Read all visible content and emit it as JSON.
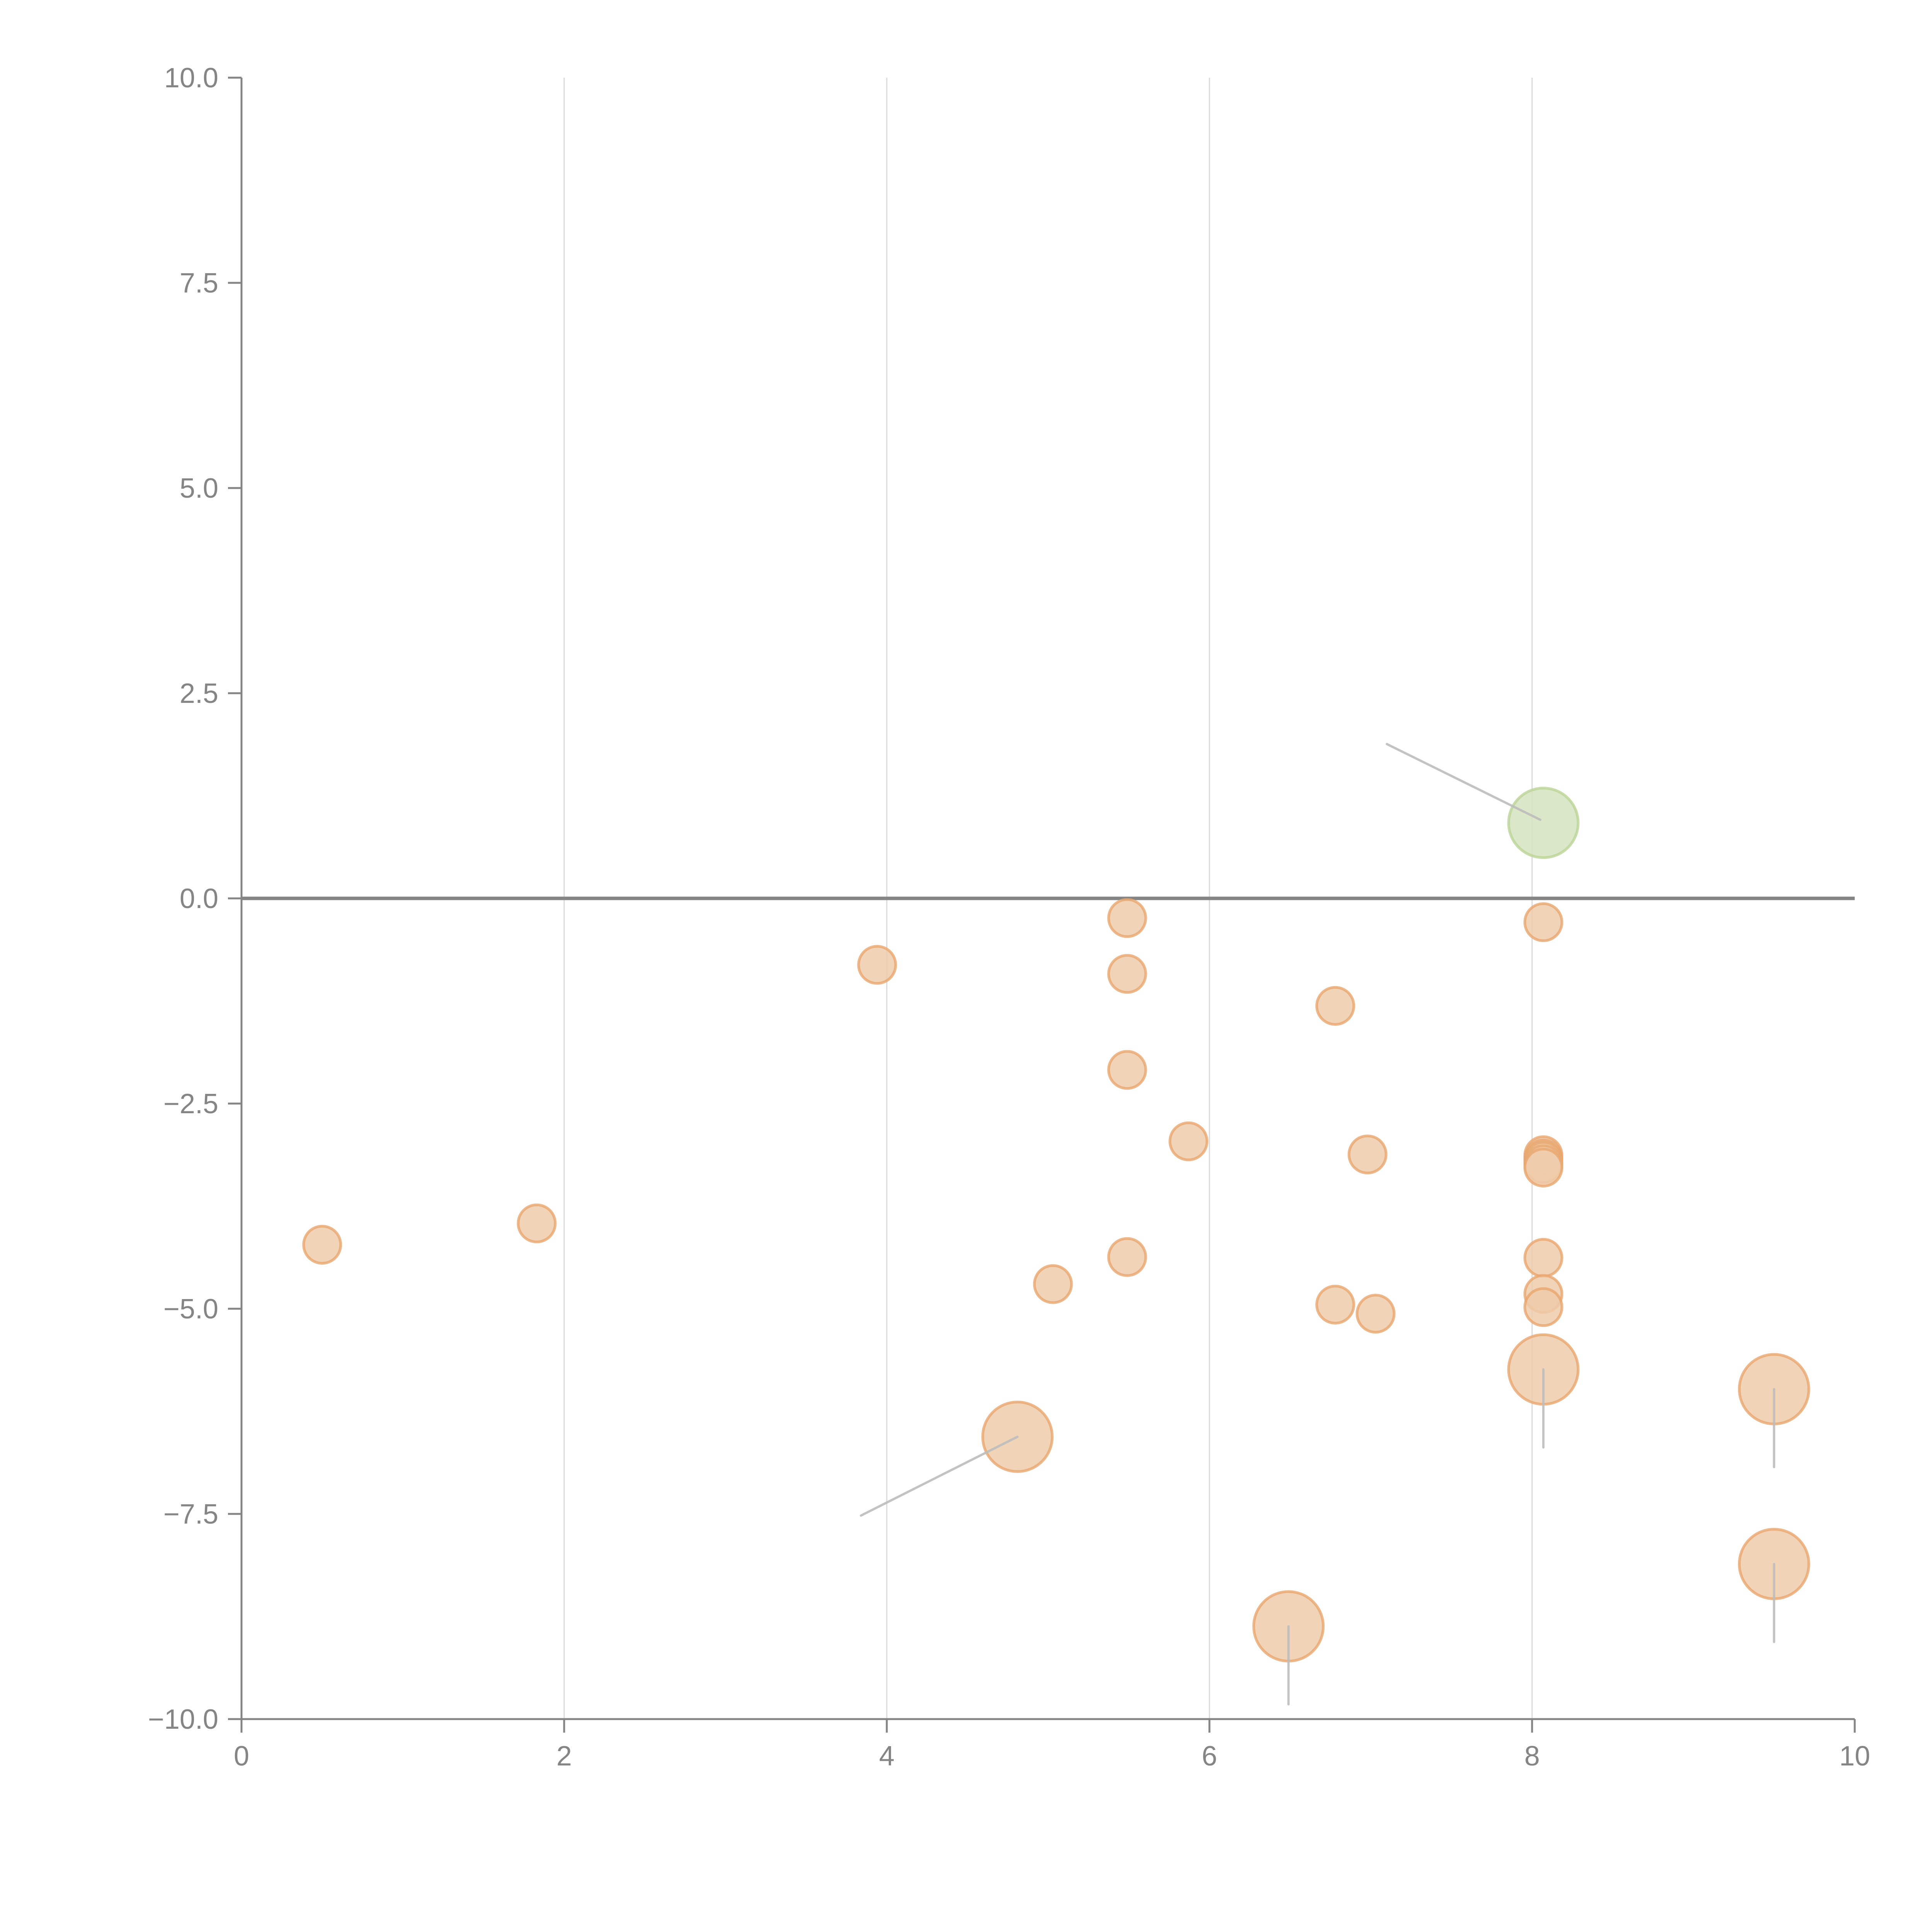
{
  "chart_data": {
    "type": "scatter",
    "title": "",
    "xlabel": "",
    "ylabel": "",
    "xlim": [
      0,
      10
    ],
    "ylim": [
      -10,
      10
    ],
    "x_ticks": [
      0,
      2,
      4,
      6,
      8,
      10
    ],
    "x_tick_labels": [
      "0",
      "2",
      "4",
      "6",
      "8",
      "10"
    ],
    "y_ticks": [
      10,
      7.5,
      5,
      2.5,
      0,
      -2.5,
      -5,
      -7.5,
      -10
    ],
    "y_tick_labels": [
      "10.0",
      "7.5",
      "5.0",
      "2.5",
      "0.0",
      "−2.5",
      "−5.0",
      "−7.5",
      "−10.0"
    ],
    "grid": "vertical",
    "zero_line": true,
    "legend": "none",
    "colors": {
      "default_fill": "#efcbaa",
      "default_stroke": "#e8a66e",
      "highlight_fill": "#d5e3bf",
      "highlight_stroke": "#bcd597",
      "leader": "#bdbdbd",
      "axis": "#858585",
      "grid": "#d9d9d9"
    },
    "series": [
      {
        "name": "points",
        "points": [
          {
            "x": 0.5,
            "y": -4.22,
            "size": "small",
            "highlight": false
          },
          {
            "x": 1.83,
            "y": -3.96,
            "size": "small",
            "highlight": false
          },
          {
            "x": 3.94,
            "y": -0.81,
            "size": "small",
            "highlight": false
          },
          {
            "x": 5.49,
            "y": -0.24,
            "size": "small",
            "highlight": false
          },
          {
            "x": 5.49,
            "y": -0.92,
            "size": "small",
            "highlight": false
          },
          {
            "x": 5.49,
            "y": -2.09,
            "size": "small",
            "highlight": false
          },
          {
            "x": 5.49,
            "y": -4.37,
            "size": "small",
            "highlight": false
          },
          {
            "x": 5.03,
            "y": -4.7,
            "size": "small",
            "highlight": false
          },
          {
            "x": 5.87,
            "y": -2.96,
            "size": "small",
            "highlight": false
          },
          {
            "x": 6.78,
            "y": -1.31,
            "size": "small",
            "highlight": false
          },
          {
            "x": 6.98,
            "y": -3.12,
            "size": "small",
            "highlight": false
          },
          {
            "x": 6.78,
            "y": -4.95,
            "size": "small",
            "highlight": false
          },
          {
            "x": 7.03,
            "y": -5.06,
            "size": "small",
            "highlight": false
          },
          {
            "x": 8.07,
            "y": -0.29,
            "size": "small",
            "highlight": false
          },
          {
            "x": 8.07,
            "y": -3.13,
            "size": "small",
            "highlight": false
          },
          {
            "x": 8.07,
            "y": -3.17,
            "size": "small",
            "highlight": false
          },
          {
            "x": 8.07,
            "y": -3.2,
            "size": "small",
            "highlight": false
          },
          {
            "x": 8.07,
            "y": -3.24,
            "size": "small",
            "highlight": false
          },
          {
            "x": 8.07,
            "y": -3.28,
            "size": "small",
            "highlight": false
          },
          {
            "x": 8.07,
            "y": -4.38,
            "size": "small",
            "highlight": false
          },
          {
            "x": 8.07,
            "y": -4.82,
            "size": "small",
            "highlight": false
          },
          {
            "x": 8.07,
            "y": -4.98,
            "size": "small",
            "highlight": false
          },
          {
            "x": 4.81,
            "y": -6.56,
            "size": "large",
            "highlight": false,
            "leader": {
              "to_x": 3.84,
              "to_y": -7.52
            }
          },
          {
            "x": 6.49,
            "y": -8.87,
            "size": "large",
            "highlight": false,
            "leader": {
              "to_x": 6.49,
              "to_y": -9.82
            }
          },
          {
            "x": 8.07,
            "y": -5.74,
            "size": "large",
            "highlight": false,
            "leader": {
              "to_x": 8.07,
              "to_y": -6.69
            }
          },
          {
            "x": 9.5,
            "y": -5.98,
            "size": "large",
            "highlight": false,
            "leader": {
              "to_x": 9.5,
              "to_y": -6.93
            }
          },
          {
            "x": 9.5,
            "y": -8.11,
            "size": "large",
            "highlight": false,
            "leader": {
              "to_x": 9.5,
              "to_y": -9.06
            }
          },
          {
            "x": 8.07,
            "y": 0.92,
            "size": "large",
            "highlight": true,
            "leader": {
              "to_x": 7.1,
              "to_y": 1.88
            }
          }
        ]
      }
    ]
  }
}
